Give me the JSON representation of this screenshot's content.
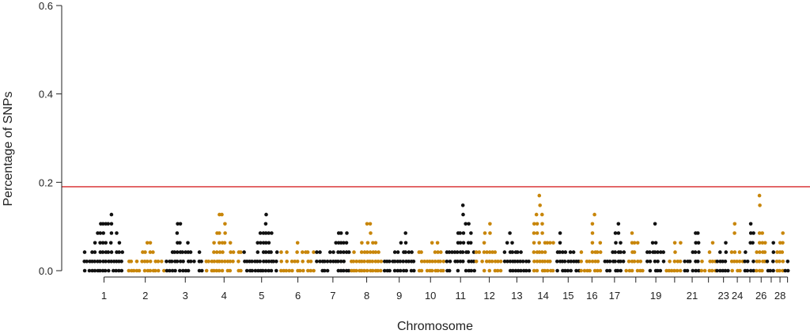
{
  "chart_data": {
    "type": "scatter",
    "title": "",
    "xlabel": "Chromosome",
    "ylabel": "Percentage of SNPs",
    "ylim": [
      0.0,
      0.6
    ],
    "y_ticks": [
      "0.0",
      "0.2",
      "0.4",
      "0.6"
    ],
    "x_tick_labels": [
      "1",
      "2",
      "3",
      "4",
      "5",
      "6",
      "7",
      "8",
      "9",
      "10",
      "11",
      "12",
      "13",
      "14",
      "15",
      "16",
      "17",
      "19",
      "21",
      "23",
      "24",
      "26",
      "28"
    ],
    "threshold": {
      "value": 0.19,
      "color": "#d62728"
    },
    "colors": {
      "odd": "#111111",
      "even": "#c8860a",
      "highlight": "#6b1010"
    },
    "chromosomes": [
      {
        "chr": 1,
        "max": 0.19
      },
      {
        "chr": 2,
        "max": 0.085
      },
      {
        "chr": 3,
        "max": 0.15
      },
      {
        "chr": 4,
        "max": 0.17
      },
      {
        "chr": 5,
        "max": 0.15
      },
      {
        "chr": 6,
        "max": 0.13
      },
      {
        "chr": 7,
        "max": 0.15
      },
      {
        "chr": 8,
        "max": 0.15
      },
      {
        "chr": 9,
        "max": 0.13
      },
      {
        "chr": 10,
        "max": 0.13
      },
      {
        "chr": 11,
        "max": 0.19
      },
      {
        "chr": 12,
        "max": 0.15
      },
      {
        "chr": 13,
        "max": 0.13
      },
      {
        "chr": 14,
        "max": 0.21
      },
      {
        "chr": 15,
        "max": 0.15
      },
      {
        "chr": 16,
        "max": 0.15
      },
      {
        "chr": 17,
        "max": 0.13
      },
      {
        "chr": 18,
        "max": 0.13
      },
      {
        "chr": 19,
        "max": 0.15
      },
      {
        "chr": 20,
        "max": 0.1
      },
      {
        "chr": 21,
        "max": 0.13
      },
      {
        "chr": 22,
        "max": 0.085
      },
      {
        "chr": 23,
        "max": 0.13
      },
      {
        "chr": 24,
        "max": 0.13
      },
      {
        "chr": 25,
        "max": 0.15
      },
      {
        "chr": 26,
        "max": 0.21
      },
      {
        "chr": 27,
        "max": 0.085
      },
      {
        "chr": 28,
        "max": 0.17
      },
      {
        "chr": 29,
        "max": 0.1
      }
    ]
  }
}
